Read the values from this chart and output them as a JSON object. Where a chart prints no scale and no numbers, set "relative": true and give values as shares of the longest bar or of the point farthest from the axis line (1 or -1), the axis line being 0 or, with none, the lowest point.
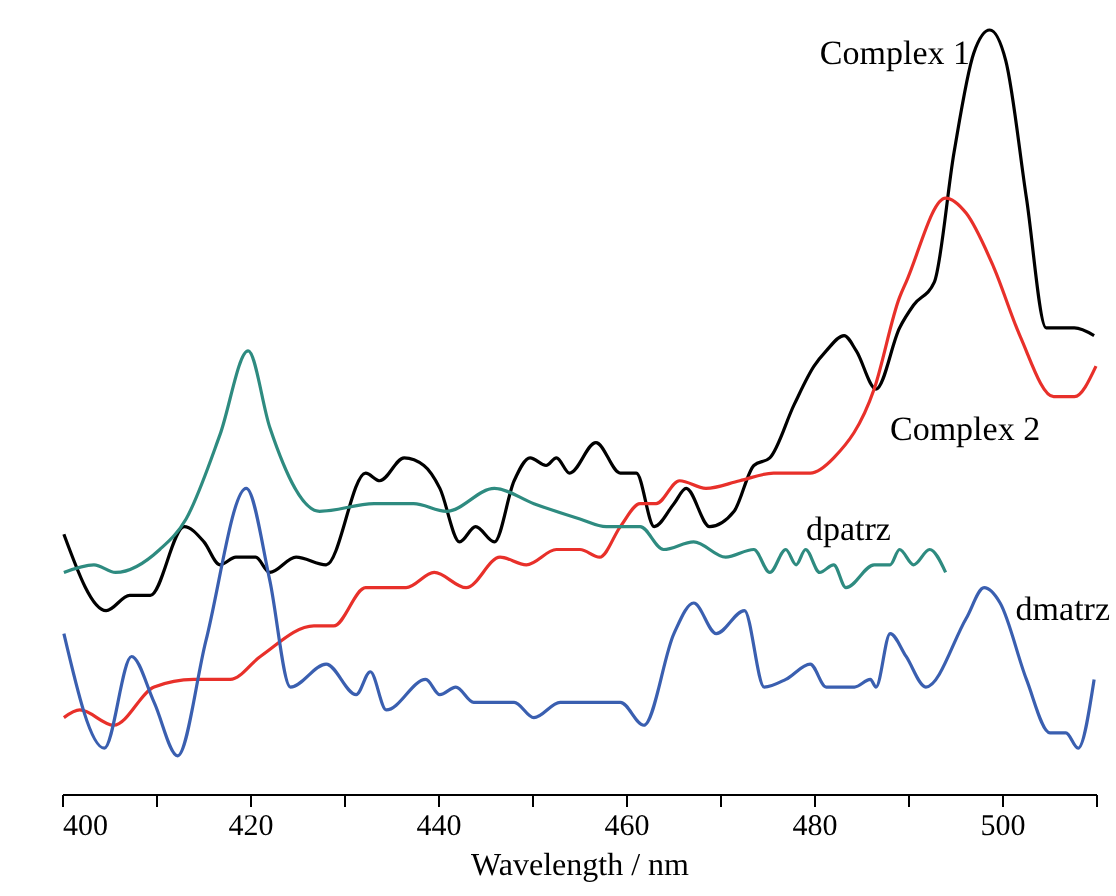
{
  "chart_data": {
    "type": "line",
    "xlabel": "Wavelength / nm",
    "relative": true,
    "xlim": [
      400,
      510
    ],
    "xticks": [
      400,
      {
        "value": 410,
        "label": null
      },
      420,
      {
        "value": 430,
        "label": null
      },
      440,
      {
        "value": 450,
        "label": null
      },
      460,
      {
        "value": 470,
        "label": null
      },
      480,
      {
        "value": 490,
        "label": null
      },
      500,
      {
        "value": 510,
        "label": null
      }
    ],
    "series": [
      {
        "name": "Complex 1",
        "color": "#000000",
        "x": [
          400.2,
          404.7,
          407.2,
          409.4,
          413.0,
          415.1,
          416.8,
          418.5,
          420.6,
          422.1,
          424.9,
          428.1,
          432.3,
          433.8,
          436.4,
          438.5,
          440.2,
          442.3,
          444.0,
          446.0,
          448.1,
          449.8,
          451.5,
          452.6,
          454.0,
          456.8,
          459.4,
          461.1,
          463.0,
          465.1,
          466.4,
          468.9,
          471.5,
          473.6,
          475.3,
          477.9,
          480.0,
          481.3,
          483.2,
          484.5,
          486.6,
          489.1,
          490.6,
          492.8,
          494.9,
          497.0,
          498.7,
          500.4,
          502.6,
          504.7,
          506.2,
          507.7,
          509.8
        ],
        "values": [
          0.34,
          0.24,
          0.26,
          0.26,
          0.35,
          0.33,
          0.3,
          0.31,
          0.31,
          0.29,
          0.31,
          0.3,
          0.42,
          0.41,
          0.44,
          0.43,
          0.4,
          0.33,
          0.35,
          0.33,
          0.41,
          0.44,
          0.43,
          0.44,
          0.42,
          0.46,
          0.42,
          0.42,
          0.35,
          0.38,
          0.4,
          0.35,
          0.37,
          0.43,
          0.44,
          0.51,
          0.56,
          0.58,
          0.6,
          0.58,
          0.53,
          0.61,
          0.64,
          0.67,
          0.84,
          0.97,
          1,
          0.96,
          0.78,
          0.61,
          0.61,
          0.61,
          0.6
        ]
      },
      {
        "name": "Complex 2",
        "color": "#e8302a",
        "x": [
          400.2,
          401.9,
          405.5,
          409.8,
          414.0,
          417.9,
          421.1,
          426.8,
          428.9,
          432.3,
          436.6,
          439.6,
          443.0,
          446.6,
          449.4,
          452.6,
          455.1,
          457.2,
          459.4,
          461.5,
          463.2,
          465.7,
          468.5,
          472.1,
          475.7,
          479.6,
          482.1,
          486.4,
          489.1,
          489.8,
          494.0,
          496.2,
          499.1,
          501.9,
          505.5,
          507.7,
          510.0
        ],
        "values": [
          0.1,
          0.11,
          0.09,
          0.14,
          0.15,
          0.15,
          0.18,
          0.22,
          0.22,
          0.27,
          0.27,
          0.29,
          0.27,
          0.31,
          0.3,
          0.32,
          0.32,
          0.31,
          0.35,
          0.38,
          0.38,
          0.41,
          0.4,
          0.41,
          0.42,
          0.42,
          0.44,
          0.53,
          0.65,
          0.67,
          0.78,
          0.76,
          0.69,
          0.6,
          0.52,
          0.52,
          0.56
        ]
      },
      {
        "name": "dpatrz",
        "color": "#2e8b80",
        "x": [
          400.2,
          403.4,
          405.7,
          410.4,
          413.2,
          416.8,
          419.8,
          422.1,
          427.4,
          433.2,
          437.4,
          440.9,
          446.0,
          450.2,
          455.1,
          457.9,
          461.5,
          464.0,
          467.2,
          470.6,
          473.6,
          475.3,
          477.0,
          478.1,
          479.1,
          480.6,
          482.1,
          483.4,
          486.4,
          488.1,
          489.1,
          490.6,
          492.3,
          494.0
        ],
        "values": [
          0.29,
          0.3,
          0.29,
          0.32,
          0.36,
          0.47,
          0.58,
          0.48,
          0.37,
          0.38,
          0.38,
          0.37,
          0.4,
          0.38,
          0.36,
          0.35,
          0.35,
          0.32,
          0.33,
          0.31,
          0.32,
          0.29,
          0.32,
          0.3,
          0.32,
          0.29,
          0.3,
          0.27,
          0.3,
          0.3,
          0.32,
          0.3,
          0.32,
          0.29
        ]
      },
      {
        "name": "dmatrz",
        "color": "#3a5fb0",
        "x": [
          400.2,
          404.5,
          407.4,
          409.8,
          412.3,
          415.3,
          419.6,
          422.1,
          424.3,
          428.1,
          431.3,
          432.8,
          434.5,
          438.7,
          440.2,
          441.9,
          443.8,
          448.1,
          450.2,
          453.0,
          455.1,
          459.4,
          461.9,
          465.1,
          467.2,
          469.6,
          472.6,
          474.7,
          477.0,
          479.6,
          481.3,
          484.3,
          486.0,
          486.6,
          488.1,
          489.8,
          491.9,
          496.2,
          498.1,
          499.8,
          502.6,
          505.1,
          506.8,
          508.1,
          509.8
        ],
        "values": [
          0.21,
          0.06,
          0.18,
          0.12,
          0.05,
          0.2,
          0.4,
          0.28,
          0.14,
          0.17,
          0.13,
          0.16,
          0.11,
          0.15,
          0.13,
          0.14,
          0.12,
          0.12,
          0.1,
          0.12,
          0.12,
          0.12,
          0.09,
          0.21,
          0.25,
          0.21,
          0.24,
          0.14,
          0.15,
          0.17,
          0.14,
          0.14,
          0.15,
          0.14,
          0.21,
          0.18,
          0.14,
          0.23,
          0.27,
          0.25,
          0.15,
          0.08,
          0.08,
          0.06,
          0.15
        ]
      }
    ]
  }
}
